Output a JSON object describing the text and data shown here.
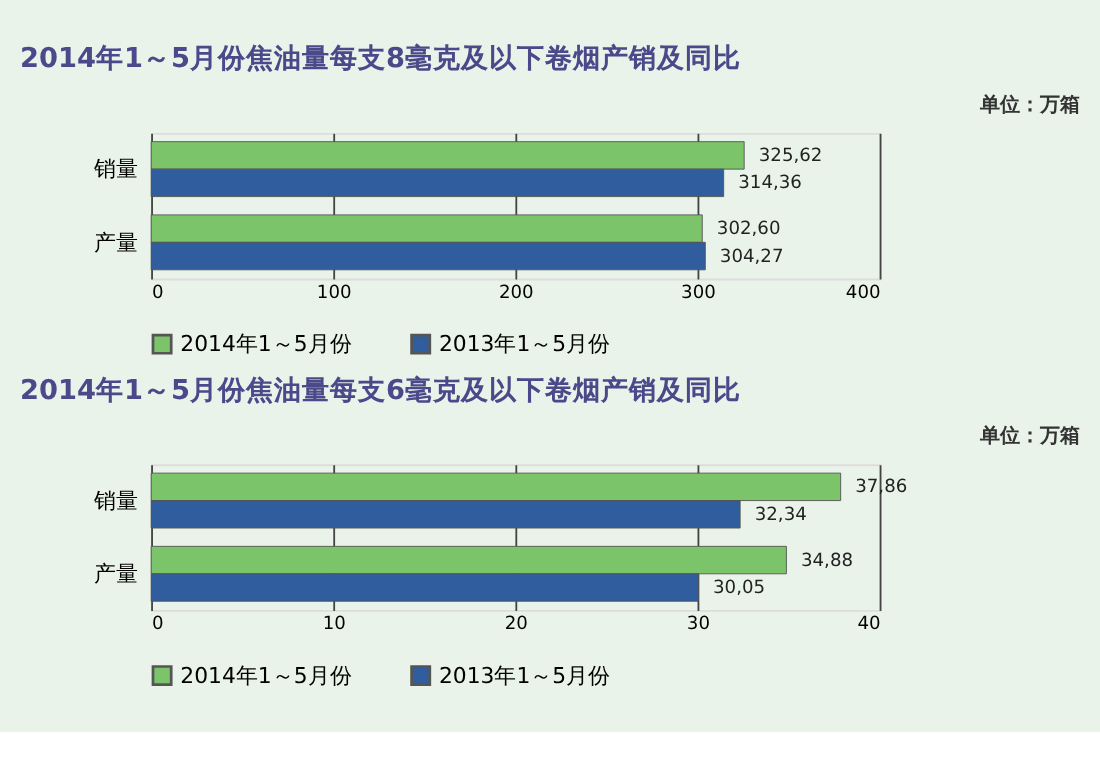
{
  "chart_data": [
    {
      "type": "bar",
      "title": "2014年1～5月份焦油量每支8毫克及以下卷烟产销及同比",
      "annotations": [
        "单位：万箱"
      ],
      "orientation": "horizontal",
      "categories": [
        "销量",
        "产量"
      ],
      "series": [
        {
          "name": "2014年1～5月份",
          "color": "#7cc46a",
          "values": [
            325.62,
            302.6
          ],
          "value_labels": [
            "325,62",
            "302,60"
          ]
        },
        {
          "name": "2013年1～5月份",
          "color": "#2f5d9e",
          "values": [
            314.36,
            304.27
          ],
          "value_labels": [
            "314,36",
            "304,27"
          ]
        }
      ],
      "xlim": [
        0,
        400
      ],
      "xticks": [
        0,
        100,
        200,
        300,
        400
      ],
      "grid": "x",
      "legend": "bottom"
    },
    {
      "type": "bar",
      "title": "2014年1～5月份焦油量每支6毫克及以下卷烟产销及同比",
      "annotations": [
        "单位：万箱"
      ],
      "orientation": "horizontal",
      "categories": [
        "销量",
        "产量"
      ],
      "series": [
        {
          "name": "2014年1～5月份",
          "color": "#7cc46a",
          "values": [
            37.86,
            34.88
          ],
          "value_labels": [
            "37,86",
            "34,88"
          ]
        },
        {
          "name": "2013年1～5月份",
          "color": "#2f5d9e",
          "values": [
            32.34,
            30.05
          ],
          "value_labels": [
            "32,34",
            "30,05"
          ]
        }
      ],
      "xlim": [
        0,
        40
      ],
      "xticks": [
        0,
        10,
        20,
        30,
        40
      ],
      "grid": "x",
      "legend": "bottom"
    }
  ]
}
